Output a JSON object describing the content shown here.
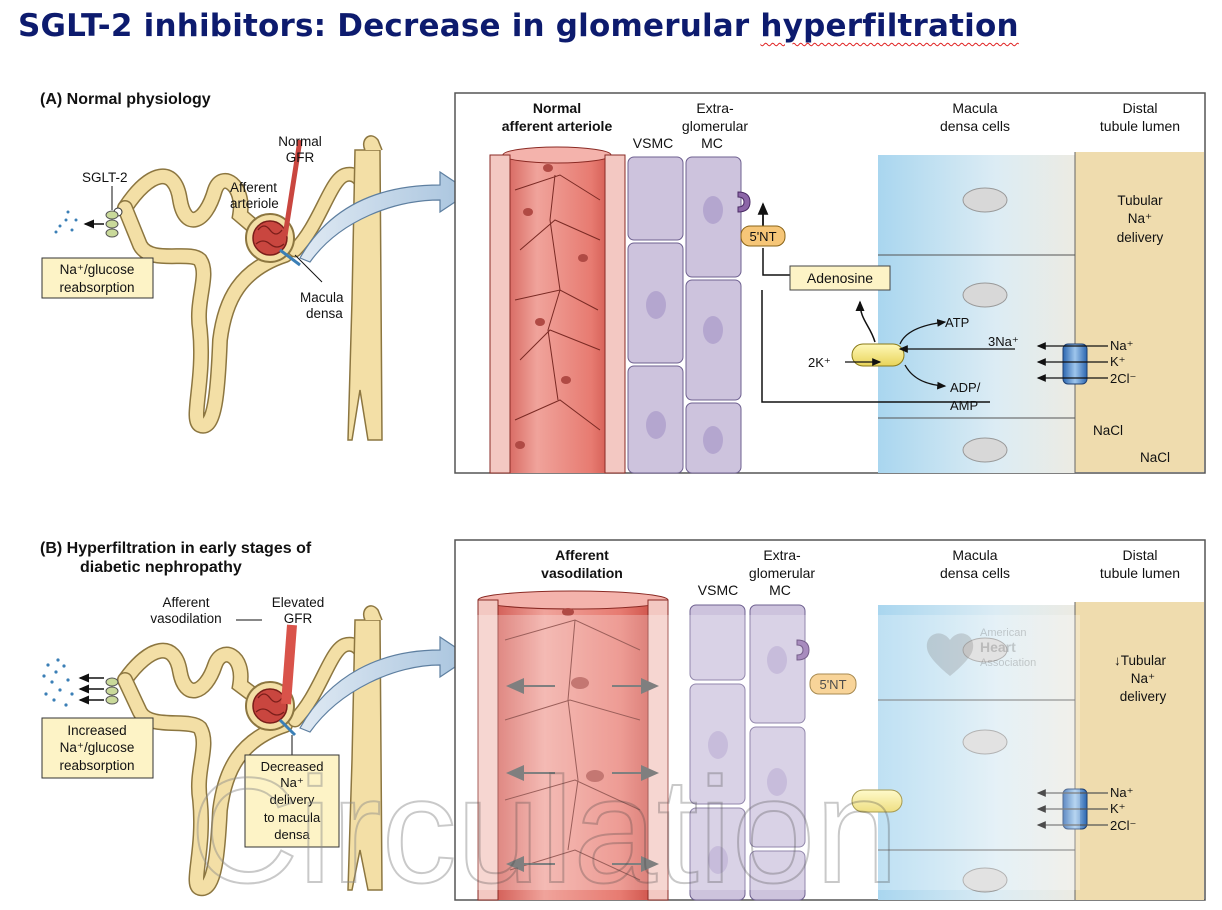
{
  "title": {
    "main": "SGLT-2 inhibitors: Decrease in glomerular ",
    "underlined": "hyperfiltration"
  },
  "panel_a": {
    "heading": "(A)  Normal physiology",
    "labels": {
      "normal_gfr_1": "Normal",
      "normal_gfr_2": "GFR",
      "sglt2": "SGLT-2",
      "afferent_1": "Afferent",
      "afferent_2": "arteriole",
      "macula_1": "Macula",
      "macula_2": "densa",
      "reabs_1": "Na⁺/glucose",
      "reabs_2": "reabsorption"
    },
    "box": {
      "col1_1": "Normal",
      "col1_2": "afferent arteriole",
      "col2_1": "Extra-",
      "col2_2": "glomerular",
      "col2_3": "VSMC",
      "col2_4": "MC",
      "col3_1": "Macula",
      "col3_2": "densa cells",
      "col4_1": "Distal",
      "col4_2": "tubule lumen",
      "nt": "5'NT",
      "adenosine": "Adenosine",
      "atp": "ATP",
      "na3": "3Na⁺",
      "k2": "2K⁺",
      "adp_1": "ADP/",
      "adp_2": "AMP",
      "tub_1": "Tubular",
      "tub_2": "Na⁺",
      "tub_3": "delivery",
      "na": "Na⁺",
      "k": "K⁺",
      "cl": "2Cl⁻",
      "nacl_1": "NaCl",
      "nacl_2": "NaCl"
    }
  },
  "panel_b": {
    "heading_1": "(B)  Hyperfiltration in early stages of",
    "heading_2": "diabetic nephropathy",
    "labels": {
      "afferent_1": "Afferent",
      "afferent_2": "vasodilation",
      "elevated_1": "Elevated",
      "elevated_2": "GFR",
      "reabs_1": "Increased",
      "reabs_2": "Na⁺/glucose",
      "reabs_3": "reabsorption",
      "dec_1": "Decreased",
      "dec_2": "Na⁺",
      "dec_3": "delivery",
      "dec_4": "to macula",
      "dec_5": "densa"
    },
    "box": {
      "col1_1": "Afferent",
      "col1_2": "vasodilation",
      "col2_1": "Extra-",
      "col2_2": "glomerular",
      "col2_3": "VSMC",
      "col2_4": "MC",
      "col3_1": "Macula",
      "col3_2": "densa cells",
      "col4_1": "Distal",
      "col4_2": "tubule lumen",
      "nt": "5'NT",
      "tub_1": "↓Tubular",
      "tub_2": "Na⁺",
      "tub_3": "delivery",
      "na": "Na⁺",
      "k": "K⁺",
      "cl": "2Cl⁻"
    }
  },
  "watermark": {
    "text": "Circulation",
    "logo_1": "American",
    "logo_2": "Heart",
    "logo_3": "Association"
  },
  "colors": {
    "title": "#0d1b6e",
    "arteriole": "#d9605a",
    "vsmc": "#cdc3dd",
    "macula": "#cfe6f2",
    "lumen": "#efdcae",
    "nephron": "#f3dfa6",
    "callout": "#fdf3c6"
  }
}
